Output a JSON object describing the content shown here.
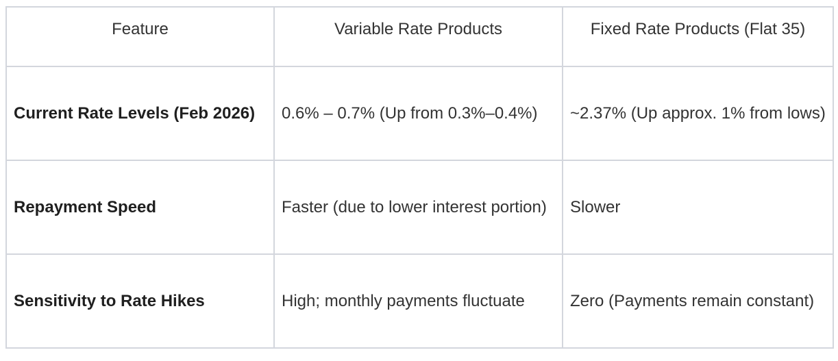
{
  "table": {
    "headers": [
      "Feature",
      "Variable Rate Products",
      "Fixed Rate Products (Flat 35)"
    ],
    "rows": [
      [
        "Current Rate Levels (Feb 2026)",
        "0.6% – 0.7% (Up from 0.3%–0.4%)",
        "~2.37% (Up approx. 1% from lows)"
      ],
      [
        "Repayment Speed",
        "Faster (due to lower interest portion)",
        "Slower"
      ],
      [
        "Sensitivity to Rate Hikes",
        "High; monthly payments fluctuate",
        "Zero (Payments remain constant)"
      ]
    ]
  }
}
